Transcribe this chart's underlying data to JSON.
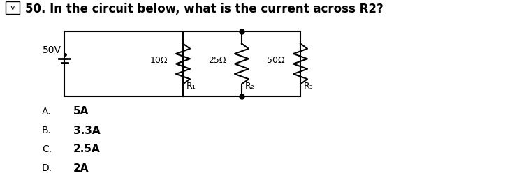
{
  "title": "50. In the circuit below, what is the current across R2?",
  "title_fontsize": 12,
  "choices": [
    "A.",
    "B.",
    "C.",
    "D."
  ],
  "answers": [
    "5A",
    "3.3A",
    "2.5A",
    "2A"
  ],
  "voltage_label": "50V",
  "resistor_labels": [
    "10Ω",
    "25Ω",
    "50Ω"
  ],
  "resistor_names": [
    "R₁",
    "R₂",
    "R₃"
  ],
  "bg_color": "#ffffff",
  "text_color": "#000000",
  "line_color": "#000000",
  "dot_color": "#000000"
}
